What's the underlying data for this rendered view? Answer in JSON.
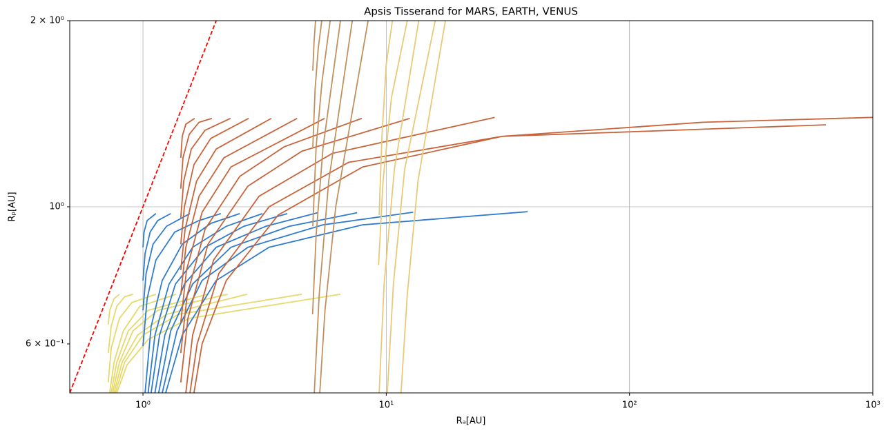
{
  "chart_data": {
    "type": "line",
    "title": "Apsis Tisserand for MARS, EARTH, VENUS",
    "xlabel": "Rₐ[AU]",
    "ylabel": "Rₚ[AU]",
    "xscale": "log",
    "yscale": "log",
    "xlim": [
      0.5,
      1000
    ],
    "ylim": [
      0.5,
      2
    ],
    "xticks": [
      {
        "value": 1,
        "label": "10⁰"
      },
      {
        "value": 10,
        "label": "10¹"
      },
      {
        "value": 100,
        "label": "10²"
      },
      {
        "value": 1000,
        "label": "10³"
      }
    ],
    "yticks": [
      {
        "value": 0.6,
        "label": "6 × 10⁻¹"
      },
      {
        "value": 1,
        "label": "10⁰"
      },
      {
        "value": 2,
        "label": "2 × 10⁰"
      }
    ],
    "grid": true,
    "series": [
      {
        "color": "#e5d96a",
        "x": [
          0.72,
          0.73,
          0.76,
          0.8,
          null,
          0.72,
          0.74,
          0.78,
          0.84,
          0.91,
          null,
          0.72,
          0.74,
          0.8,
          0.9,
          1.13,
          null,
          0.73,
          0.76,
          0.83,
          0.97,
          1.37,
          null,
          0.74,
          0.78,
          0.87,
          1.05,
          1.84,
          null,
          0.75,
          0.8,
          0.91,
          1.15,
          2.23,
          null,
          0.76,
          0.82,
          0.95,
          1.25,
          2.68,
          null,
          0.77,
          0.84,
          1.0,
          1.4,
          4.5,
          null,
          0.78,
          0.86,
          1.05,
          1.55,
          6.48
        ],
        "values": [
          0.645,
          0.68,
          0.71,
          0.722,
          null,
          0.58,
          0.64,
          0.69,
          0.715,
          0.722,
          null,
          0.52,
          0.59,
          0.66,
          0.7,
          0.722,
          null,
          0.5,
          0.56,
          0.63,
          0.69,
          0.722,
          null,
          0.5,
          0.56,
          0.63,
          0.68,
          0.722,
          null,
          0.5,
          0.56,
          0.63,
          0.68,
          0.722,
          null,
          0.5,
          0.56,
          0.62,
          0.67,
          0.722,
          null,
          0.5,
          0.56,
          0.62,
          0.67,
          0.722,
          null,
          0.5,
          0.555,
          0.61,
          0.66,
          0.722
        ]
      },
      {
        "color": "#2e7bcf",
        "x": [
          1.0,
          1.01,
          1.04,
          1.13,
          null,
          1.0,
          1.02,
          1.07,
          1.15,
          1.3,
          null,
          1.0,
          1.03,
          1.1,
          1.25,
          1.56,
          null,
          1.0,
          1.04,
          1.13,
          1.35,
          1.7,
          2.09,
          null,
          1.02,
          1.08,
          1.2,
          1.45,
          1.9,
          2.5,
          null,
          1.05,
          1.12,
          1.28,
          1.6,
          2.2,
          3.1,
          null,
          1.08,
          1.17,
          1.36,
          1.8,
          2.6,
          3.92,
          null,
          1.12,
          1.23,
          1.48,
          2.0,
          3.2,
          5.22,
          null,
          1.16,
          1.3,
          1.6,
          2.3,
          4.0,
          7.59,
          null,
          1.2,
          1.38,
          1.75,
          2.7,
          5.5,
          12.9,
          null,
          1.24,
          1.45,
          2.0,
          3.3,
          8,
          38.1
        ],
        "values": [
          0.86,
          0.91,
          0.95,
          0.975,
          null,
          0.76,
          0.84,
          0.91,
          0.95,
          0.975,
          null,
          0.68,
          0.78,
          0.87,
          0.93,
          0.975,
          null,
          0.595,
          0.71,
          0.82,
          0.91,
          0.95,
          0.975,
          null,
          0.5,
          0.64,
          0.76,
          0.87,
          0.94,
          0.975,
          null,
          0.5,
          0.62,
          0.75,
          0.86,
          0.93,
          0.975,
          null,
          0.5,
          0.62,
          0.75,
          0.86,
          0.93,
          0.975,
          null,
          0.5,
          0.62,
          0.75,
          0.86,
          0.93,
          0.978,
          null,
          0.5,
          0.63,
          0.75,
          0.86,
          0.93,
          0.978,
          null,
          0.5,
          0.63,
          0.76,
          0.86,
          0.935,
          0.98,
          null,
          0.5,
          0.62,
          0.76,
          0.86,
          0.935,
          0.982
        ]
      },
      {
        "color": "#c8643c",
        "x": [
          1.43,
          1.45,
          1.5,
          1.63,
          null,
          1.43,
          1.46,
          1.55,
          1.7,
          1.92,
          null,
          1.43,
          1.47,
          1.58,
          1.8,
          2.29,
          null,
          1.43,
          1.48,
          1.62,
          1.9,
          2.72,
          null,
          1.43,
          1.49,
          1.66,
          2.0,
          3.37,
          null,
          1.43,
          1.5,
          1.7,
          2.15,
          4.3,
          null,
          1.43,
          1.51,
          1.75,
          2.3,
          5.58,
          null,
          1.43,
          1.52,
          1.8,
          2.5,
          3.8,
          7.93,
          null,
          1.43,
          1.53,
          1.85,
          2.7,
          4.5,
          12.5,
          null,
          1.5,
          1.6,
          1.95,
          3.0,
          6.0,
          27.9,
          null,
          1.56,
          1.67,
          2.05,
          3.3,
          7.0,
          30,
          641,
          null,
          1.62,
          1.75,
          2.2,
          3.6,
          8,
          30,
          200,
          1000
        ],
        "values": [
          1.2,
          1.3,
          1.36,
          1.39,
          null,
          1.07,
          1.2,
          1.31,
          1.37,
          1.39,
          null,
          0.96,
          1.1,
          1.24,
          1.33,
          1.39,
          null,
          0.87,
          1.0,
          1.17,
          1.29,
          1.39,
          null,
          0.79,
          0.92,
          1.1,
          1.24,
          1.39,
          null,
          0.72,
          0.86,
          1.04,
          1.2,
          1.39,
          null,
          0.65,
          0.79,
          0.98,
          1.16,
          1.39,
          null,
          0.58,
          0.72,
          0.92,
          1.12,
          1.25,
          1.39,
          null,
          0.52,
          0.66,
          0.87,
          1.08,
          1.23,
          1.39,
          null,
          0.5,
          0.62,
          0.82,
          1.04,
          1.22,
          1.395,
          null,
          0.5,
          0.6,
          0.78,
          1.0,
          1.18,
          1.3,
          1.357,
          null,
          0.5,
          0.6,
          0.76,
          0.97,
          1.16,
          1.3,
          1.37,
          1.395
        ]
      },
      {
        "color": "#c0905f",
        "x": [
          4.99,
          5.05,
          5.12,
          null,
          4.99,
          5.1,
          5.25,
          5.43,
          null,
          4.99,
          5.15,
          5.45,
          5.88,
          null,
          4.98,
          5.15,
          5.5,
          6.48,
          null,
          5.06,
          5.3,
          5.8,
          7.25,
          null,
          5.33,
          5.6,
          6.2,
          8.42
        ],
        "values": [
          1.66,
          1.85,
          2,
          null,
          1.25,
          1.55,
          1.8,
          2,
          null,
          0.93,
          1.25,
          1.6,
          2,
          null,
          0.67,
          0.9,
          1.25,
          2,
          null,
          0.5,
          0.72,
          1.1,
          2,
          null,
          0.5,
          0.68,
          1.0,
          2
        ]
      },
      {
        "color": "#e8c97a",
        "x": [
          9.35,
          9.6,
          10.0,
          10.6,
          null,
          9.3,
          9.7,
          10.5,
          12.2,
          null,
          9.35,
          9.8,
          10.8,
          13.6,
          null,
          10.1,
          10.7,
          11.9,
          15.9,
          null,
          11.5,
          12.2,
          13.5,
          17.5
        ],
        "values": [
          0.97,
          1.3,
          1.7,
          2,
          null,
          0.805,
          1.1,
          1.5,
          2,
          null,
          0.5,
          0.75,
          1.15,
          2,
          null,
          0.5,
          0.75,
          1.15,
          2,
          null,
          0.5,
          0.72,
          1.1,
          2
        ]
      },
      {
        "color": "#ff0000",
        "dash": "dashed",
        "x": [
          0.5,
          2
        ],
        "values": [
          0.5,
          2
        ]
      }
    ]
  }
}
